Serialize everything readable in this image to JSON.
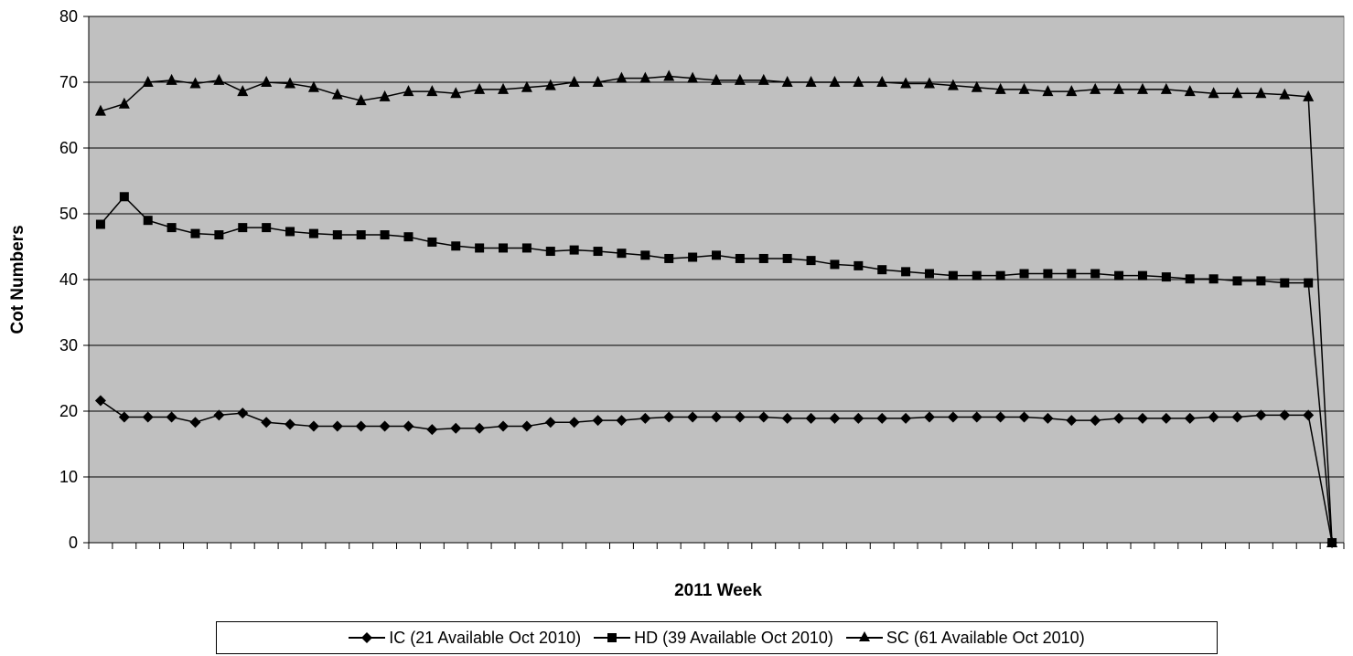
{
  "chart_data": {
    "type": "line",
    "title": "",
    "xlabel": "2011 Week",
    "ylabel": "Cot Numbers",
    "ylim": [
      0,
      80
    ],
    "yticks": [
      0,
      10,
      20,
      30,
      40,
      50,
      60,
      70,
      80
    ],
    "grid": "horizontal",
    "legend_position": "bottom",
    "plot_background": "#c0c0c0",
    "line_color": "#000000",
    "x": [
      1,
      2,
      3,
      4,
      5,
      6,
      7,
      8,
      9,
      10,
      11,
      12,
      13,
      14,
      15,
      16,
      17,
      18,
      19,
      20,
      21,
      22,
      23,
      24,
      25,
      26,
      27,
      28,
      29,
      30,
      31,
      32,
      33,
      34,
      35,
      36,
      37,
      38,
      39,
      40,
      41,
      42,
      43,
      44,
      45,
      46,
      47,
      48,
      49,
      50,
      51,
      52,
      53
    ],
    "series": [
      {
        "name": "IC (21 Available Oct 2010)",
        "marker": "diamond",
        "values": [
          21.6,
          19.1,
          19.1,
          19.1,
          18.3,
          19.4,
          19.7,
          18.3,
          18.0,
          17.7,
          17.7,
          17.7,
          17.7,
          17.7,
          17.2,
          17.4,
          17.4,
          17.7,
          17.7,
          18.3,
          18.3,
          18.6,
          18.6,
          18.9,
          19.1,
          19.1,
          19.1,
          19.1,
          19.1,
          18.9,
          18.9,
          18.9,
          18.9,
          18.9,
          18.9,
          19.1,
          19.1,
          19.1,
          19.1,
          19.1,
          18.9,
          18.6,
          18.6,
          18.9,
          18.9,
          18.9,
          18.9,
          19.1,
          19.1,
          19.4,
          19.4,
          19.4,
          0
        ]
      },
      {
        "name": "HD (39 Available Oct 2010)",
        "marker": "square",
        "values": [
          48.4,
          52.6,
          49.0,
          47.9,
          47.0,
          46.8,
          47.9,
          47.9,
          47.3,
          47.0,
          46.8,
          46.8,
          46.8,
          46.5,
          45.7,
          45.1,
          44.8,
          44.8,
          44.8,
          44.3,
          44.5,
          44.3,
          44.0,
          43.7,
          43.2,
          43.4,
          43.7,
          43.2,
          43.2,
          43.2,
          42.9,
          42.3,
          42.1,
          41.5,
          41.2,
          40.9,
          40.6,
          40.6,
          40.6,
          40.9,
          40.9,
          40.9,
          40.9,
          40.6,
          40.6,
          40.4,
          40.1,
          40.1,
          39.8,
          39.8,
          39.5,
          39.5,
          0
        ]
      },
      {
        "name": "SC (61 Available Oct 2010)",
        "marker": "triangle",
        "values": [
          65.6,
          66.7,
          70.0,
          70.3,
          69.8,
          70.3,
          68.6,
          70.0,
          69.8,
          69.2,
          68.1,
          67.2,
          67.8,
          68.6,
          68.6,
          68.3,
          68.9,
          68.9,
          69.2,
          69.5,
          70.0,
          70.0,
          70.6,
          70.6,
          70.9,
          70.6,
          70.3,
          70.3,
          70.3,
          70.0,
          70.0,
          70.0,
          70.0,
          70.0,
          69.8,
          69.8,
          69.5,
          69.2,
          68.9,
          68.9,
          68.6,
          68.6,
          68.9,
          68.9,
          68.9,
          68.9,
          68.6,
          68.3,
          68.3,
          68.3,
          68.1,
          67.8,
          0
        ]
      }
    ]
  }
}
